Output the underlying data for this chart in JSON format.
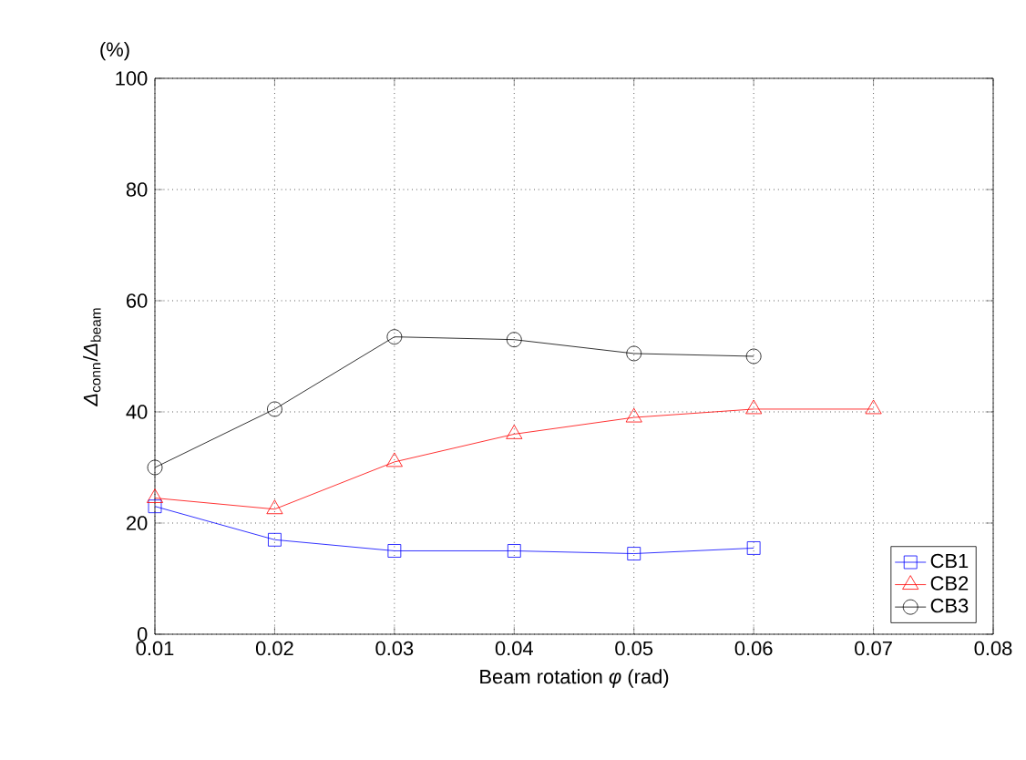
{
  "chart_data": {
    "type": "line",
    "xlabel": "Beam rotation *φ* (rad)",
    "ylabel": "*Δ*$_{conn}$/*Δ*$_{beam}$",
    "annotations": [
      "(%)"
    ],
    "x": [
      0.01,
      0.02,
      0.03,
      0.04,
      0.05,
      0.06,
      0.07
    ],
    "xlim": [
      0.01,
      0.08
    ],
    "xticks": [
      0.01,
      0.02,
      0.03,
      0.04,
      0.05,
      0.06,
      0.07,
      0.08
    ],
    "ylim": [
      0,
      100
    ],
    "yticks": [
      0,
      20,
      40,
      60,
      80,
      100
    ],
    "grid": true,
    "legend": "bottom right",
    "line_style": "solid",
    "series": [
      {
        "name": "CB1",
        "color": "#0000ff",
        "marker": "square",
        "values": [
          23,
          17,
          15,
          15,
          14.5,
          15.5,
          null
        ]
      },
      {
        "name": "CB2",
        "color": "#ff0000",
        "marker": "triangle",
        "values": [
          24.5,
          22.5,
          31,
          36,
          39,
          40.5,
          40.5
        ]
      },
      {
        "name": "CB3",
        "color": "#000000",
        "marker": "circle",
        "values": [
          30,
          40.5,
          53.5,
          53,
          50.5,
          50,
          null
        ]
      }
    ]
  }
}
